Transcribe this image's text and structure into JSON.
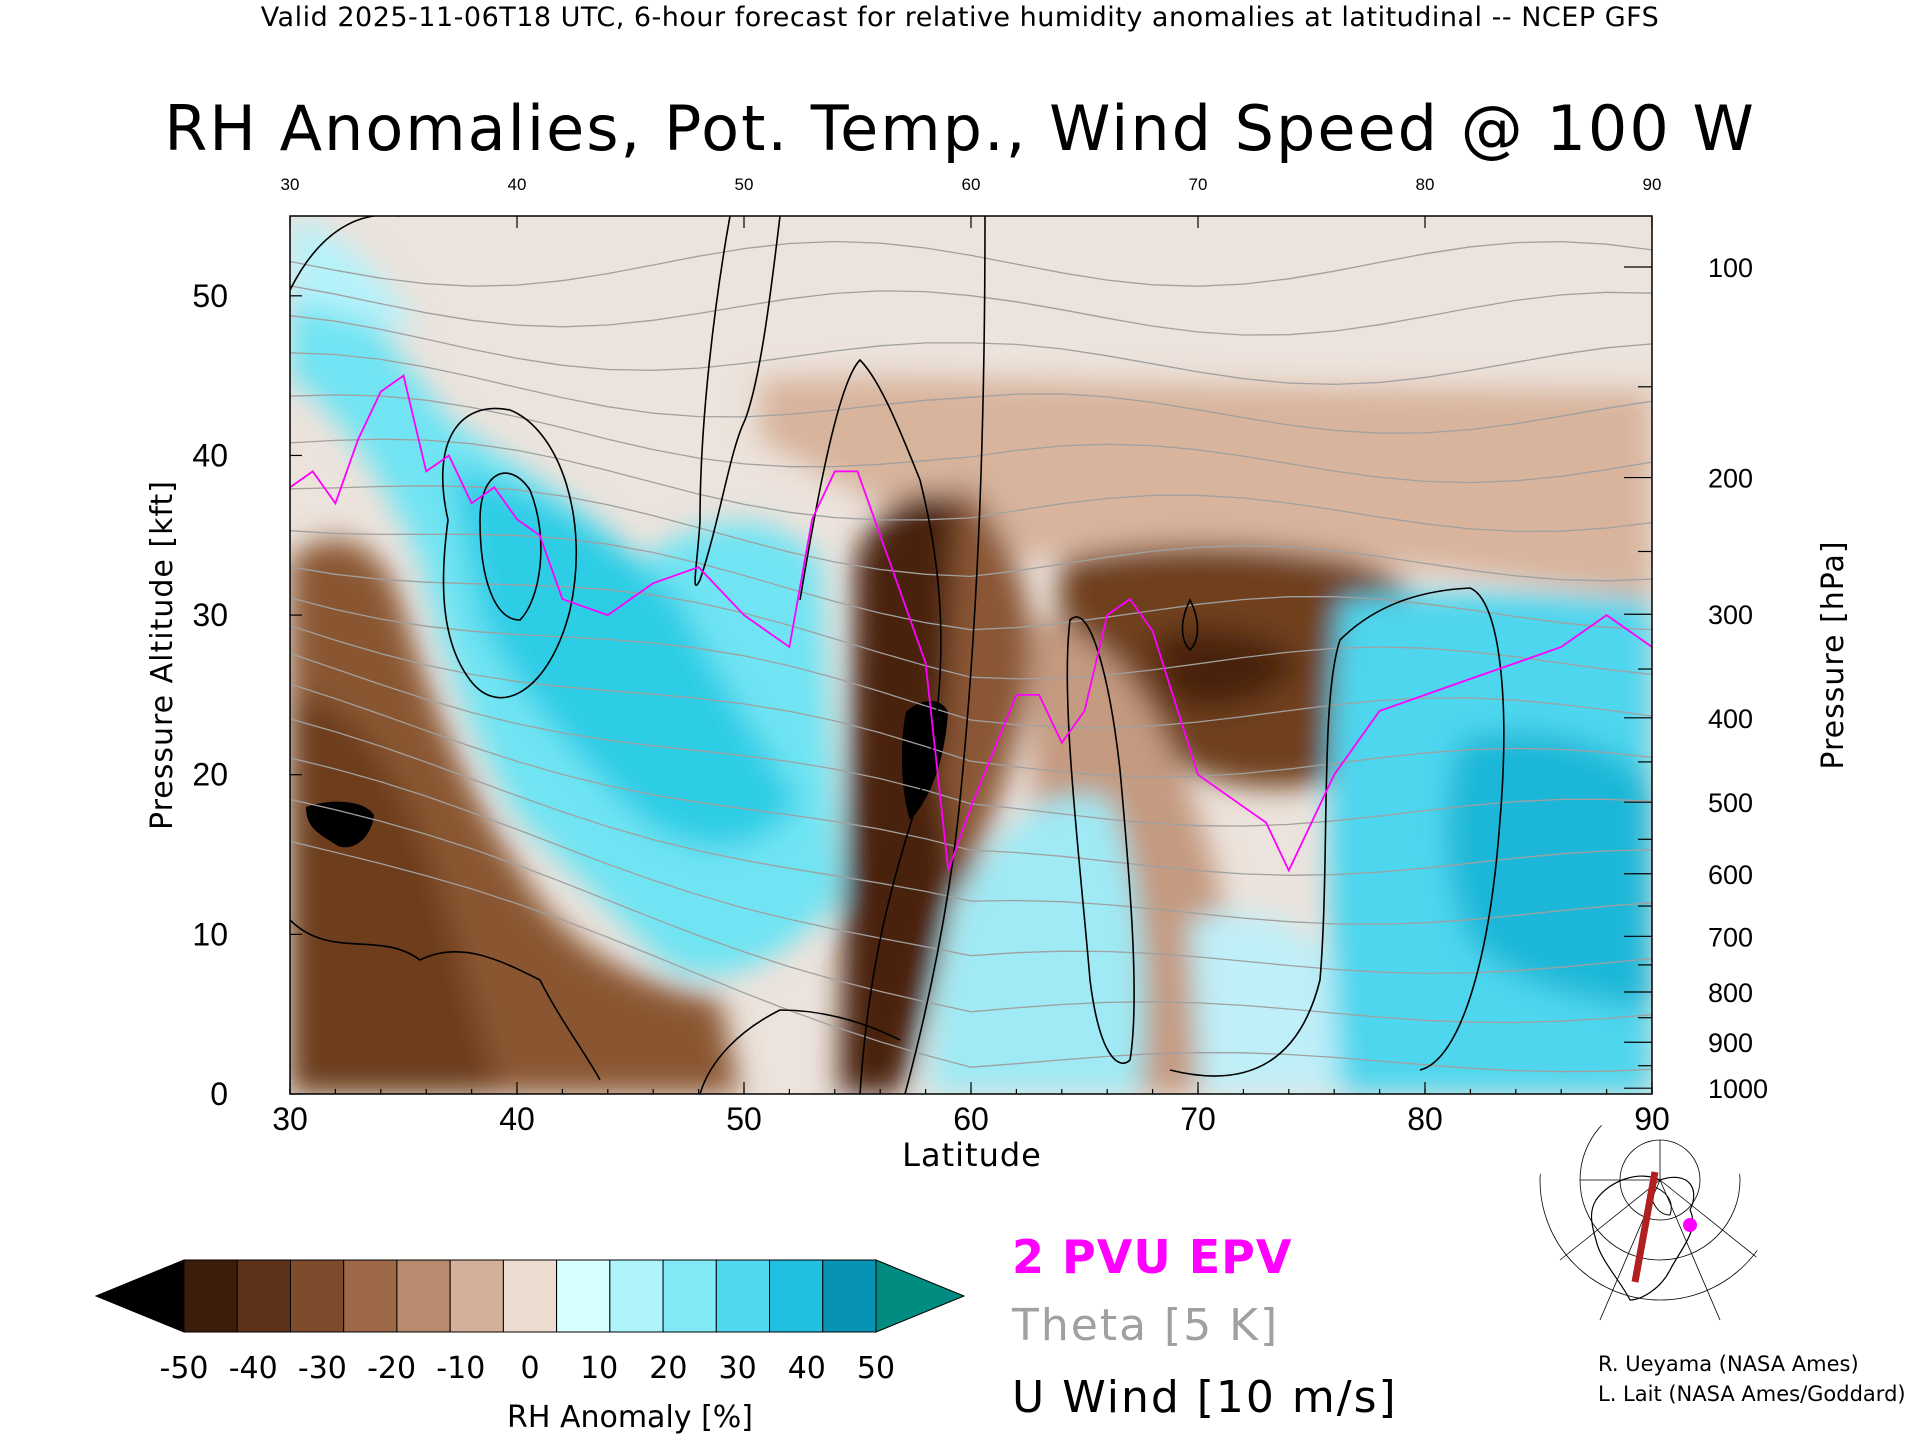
{
  "header": "Valid 2025-11-06T18 UTC, 6-hour forecast for relative humidity anomalies at latitudinal -- NCEP GFS",
  "title": "RH Anomalies, Pot. Temp., Wind Speed @ 100 W",
  "legend": {
    "epv": "2 PVU EPV",
    "theta": "Theta [5 K]",
    "u_wind": "U Wind [10 m/s]",
    "epv_color": "#ff00ff",
    "theta_color": "#a0a0a0",
    "u_color": "#000000"
  },
  "credits": [
    "R. Ueyama (NASA Ames)",
    "L. Lait (NASA Ames/Goddard)"
  ],
  "colorbar": {
    "label": "RH Anomaly [%]",
    "ticks": [
      "-50",
      "-40",
      "-30",
      "-20",
      "-10",
      "0",
      "10",
      "20",
      "30",
      "40",
      "50"
    ],
    "colors": [
      "#000000",
      "#3b1d0a",
      "#5e3218",
      "#7e4c2c",
      "#9d6847",
      "#b98a6e",
      "#d3b09a",
      "#ebdcd0",
      "#d6ffff",
      "#b0f4fb",
      "#82e9f6",
      "#50d8ef",
      "#22c0e0",
      "#0893b4",
      "#008c80"
    ]
  },
  "chart_data": {
    "type": "heatmap",
    "xlabel": "Latitude",
    "ylabel": "Pressure Altitude [kft]",
    "y2label": "Pressure [hPa]",
    "xlim": [
      30,
      90
    ],
    "ylim": [
      0,
      55
    ],
    "x_ticks": [
      "30",
      "40",
      "50",
      "60",
      "70",
      "80",
      "90"
    ],
    "y_ticks": [
      "0",
      "10",
      "20",
      "30",
      "40",
      "50"
    ],
    "pressure_ticks": [
      "100",
      "200",
      "300",
      "400",
      "500",
      "600",
      "700",
      "800",
      "900",
      "1000"
    ],
    "pressure_values_hPa": [
      100,
      200,
      300,
      400,
      500,
      600,
      700,
      800,
      900,
      1000
    ],
    "rh_anomaly_regions": [
      {
        "kind": "dry",
        "value": -40,
        "lat_range": [
          30,
          40
        ],
        "alt_range_kft": [
          0,
          32
        ]
      },
      {
        "kind": "dry",
        "value": -50,
        "lat_range": [
          31,
          34
        ],
        "alt_range_kft": [
          15,
          19
        ]
      },
      {
        "kind": "moist",
        "value": 30,
        "lat_range": [
          36,
          54
        ],
        "alt_range_kft": [
          12,
          38
        ]
      },
      {
        "kind": "dry",
        "value": -50,
        "lat_range": [
          55,
          60
        ],
        "alt_range_kft": [
          0,
          32
        ]
      },
      {
        "kind": "dry",
        "value": -40,
        "lat_range": [
          65,
          80
        ],
        "alt_range_kft": [
          18,
          35
        ]
      },
      {
        "kind": "moist",
        "value": 20,
        "lat_range": [
          61,
          67
        ],
        "alt_range_kft": [
          0,
          18
        ]
      },
      {
        "kind": "moist",
        "value": 40,
        "lat_range": [
          78,
          90
        ],
        "alt_range_kft": [
          0,
          30
        ]
      },
      {
        "kind": "dry",
        "value": -20,
        "lat_range": [
          50,
          90
        ],
        "alt_range_kft": [
          36,
          55
        ]
      }
    ],
    "epv_2pvu_line": {
      "lat": [
        30,
        31,
        32,
        33,
        34,
        35,
        36,
        37,
        38,
        39,
        40,
        41,
        42,
        44,
        46,
        48,
        50,
        51,
        52,
        53,
        54,
        55,
        56,
        57,
        58,
        59,
        60,
        62,
        63,
        64,
        65,
        66,
        67,
        68,
        70,
        71,
        72,
        73,
        74,
        75,
        76,
        78,
        80,
        82,
        84,
        86,
        88,
        90
      ],
      "alt_kft": [
        38,
        39,
        37,
        41,
        44,
        45,
        39,
        40,
        37,
        38,
        36,
        35,
        31,
        30,
        32,
        33,
        30,
        29,
        28,
        36,
        39,
        39,
        35,
        31,
        27,
        14,
        18,
        25,
        25,
        22,
        24,
        30,
        31,
        29,
        20,
        19,
        18,
        17,
        14,
        17,
        20,
        24,
        25,
        26,
        27,
        28,
        30,
        28
      ]
    },
    "theta_contours_K": [
      260,
      270,
      280,
      290,
      300,
      310,
      320,
      330,
      340,
      350,
      360,
      370,
      380,
      390,
      400,
      410,
      420
    ],
    "u_wind_contours_ms": [
      0,
      10,
      20,
      30,
      40,
      50
    ]
  }
}
